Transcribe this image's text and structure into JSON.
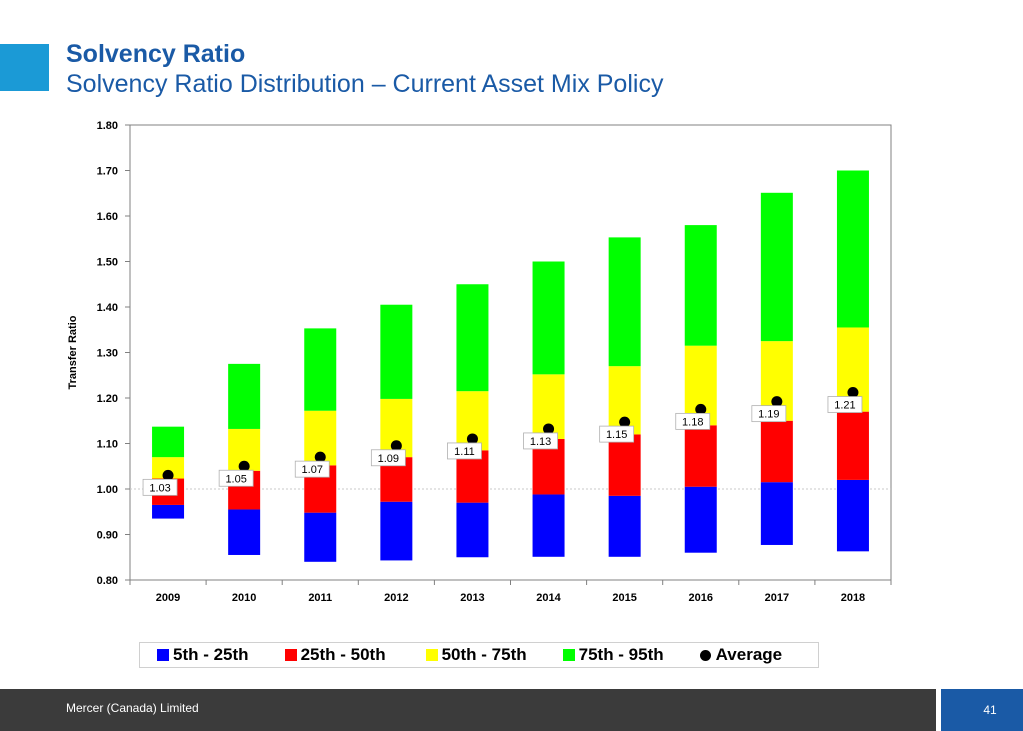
{
  "header": {
    "title": "Solvency Ratio",
    "subtitle": "Solvency Ratio Distribution – Current Asset Mix Policy"
  },
  "colors": {
    "p5_25": "#0000ff",
    "p25_50": "#ff0000",
    "p50_75": "#ffff00",
    "p75_95": "#00ff00",
    "average": "#000000",
    "brand_blue": "#1a5aa6",
    "accent_blue": "#1b9ad6"
  },
  "chart_data": {
    "type": "bar",
    "stacked": true,
    "ylabel": "Transfer Ratio",
    "xlabel": "",
    "ylim": [
      0.8,
      1.8
    ],
    "yticks": [
      "0.80",
      "0.90",
      "1.00",
      "1.10",
      "1.20",
      "1.30",
      "1.40",
      "1.50",
      "1.60",
      "1.70",
      "1.80"
    ],
    "categories": [
      "2009",
      "2010",
      "2011",
      "2012",
      "2013",
      "2014",
      "2015",
      "2016",
      "2017",
      "2018"
    ],
    "percentiles": {
      "p5": [
        0.935,
        0.855,
        0.84,
        0.843,
        0.85,
        0.851,
        0.851,
        0.86,
        0.877,
        0.863
      ],
      "p25": [
        0.965,
        0.955,
        0.948,
        0.972,
        0.97,
        0.988,
        0.985,
        1.005,
        1.015,
        1.02
      ],
      "p50": [
        1.023,
        1.04,
        1.052,
        1.07,
        1.085,
        1.11,
        1.12,
        1.14,
        1.15,
        1.17
      ],
      "p75": [
        1.07,
        1.132,
        1.172,
        1.198,
        1.215,
        1.252,
        1.27,
        1.315,
        1.325,
        1.355
      ],
      "p95": [
        1.137,
        1.275,
        1.353,
        1.405,
        1.45,
        1.5,
        1.553,
        1.58,
        1.651,
        1.7
      ]
    },
    "average": [
      1.03,
      1.05,
      1.07,
      1.095,
      1.11,
      1.132,
      1.147,
      1.175,
      1.192,
      1.212
    ],
    "average_labels": [
      "1.03",
      "1.05",
      "1.07",
      "1.09",
      "1.11",
      "1.13",
      "1.15",
      "1.18",
      "1.19",
      "1.21"
    ],
    "legend": [
      "5th - 25th",
      "25th - 50th",
      "50th - 75th",
      "75th - 95th",
      "Average"
    ],
    "legend_position": "bottom",
    "grid": false
  },
  "footer": {
    "company": "Mercer (Canada) Limited",
    "page_number": "41"
  }
}
